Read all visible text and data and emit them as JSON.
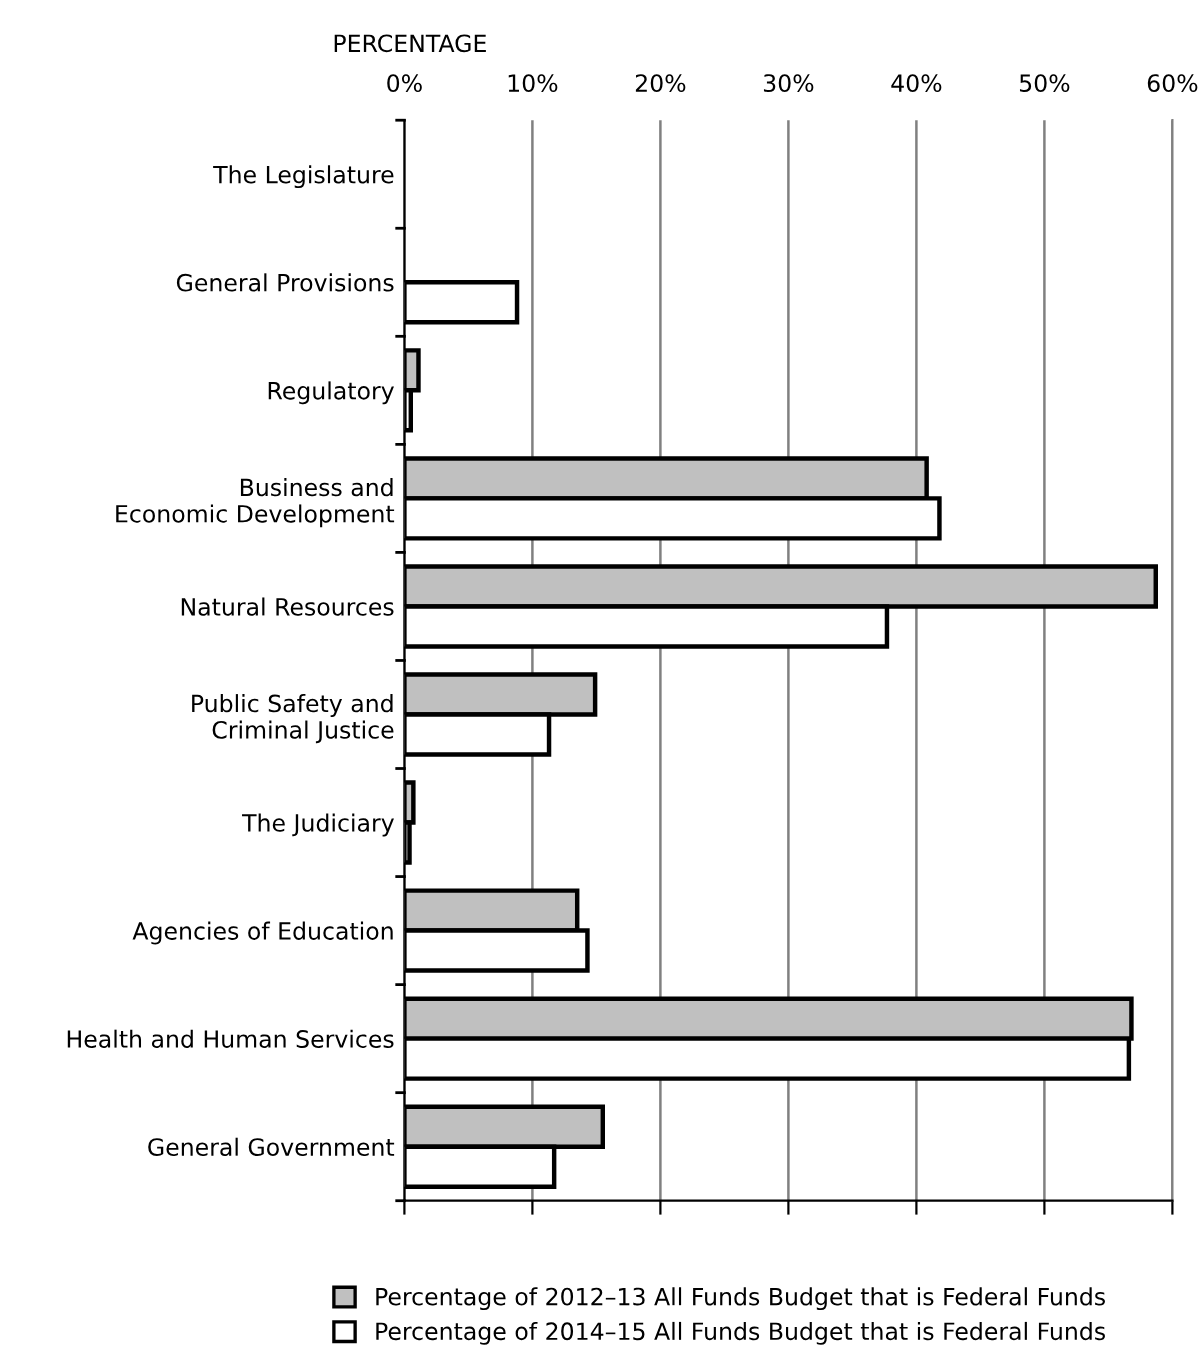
{
  "chart_data": {
    "type": "bar",
    "orientation": "horizontal",
    "xlabel": "PERCENTAGE",
    "categories": [
      "The Legislature",
      "General Provisions",
      "Regulatory",
      "Business and\nEconomic Development",
      "Natural Resources",
      "Public Safety and\nCriminal Justice",
      "The Judiciary",
      "Agencies of Education",
      "Health and Human Services",
      "General Government"
    ],
    "series": [
      {
        "name": "Percentage of 2012–13 All Funds Budget that is Federal Funds",
        "color": "#c0c0c0",
        "values": [
          null,
          null,
          1.1,
          40.8,
          58.7,
          14.9,
          0.7,
          13.5,
          56.8,
          15.5
        ]
      },
      {
        "name": "Percentage of 2014–15 All Funds Budget that is Federal Funds",
        "color": "#ffffff",
        "values": [
          null,
          8.8,
          0.5,
          41.8,
          37.7,
          11.3,
          0.4,
          14.3,
          56.6,
          11.7
        ]
      }
    ],
    "xlim": [
      0,
      60
    ],
    "xticks": [
      {
        "value": 0,
        "label": "0%"
      },
      {
        "value": 10,
        "label": "10%"
      },
      {
        "value": 20,
        "label": "20%"
      },
      {
        "value": 30,
        "label": "30%"
      },
      {
        "value": 40,
        "label": "40%"
      },
      {
        "value": 50,
        "label": "50%"
      },
      {
        "value": 60,
        "label": "60%"
      }
    ],
    "grid": "x",
    "legend": "bottom"
  }
}
